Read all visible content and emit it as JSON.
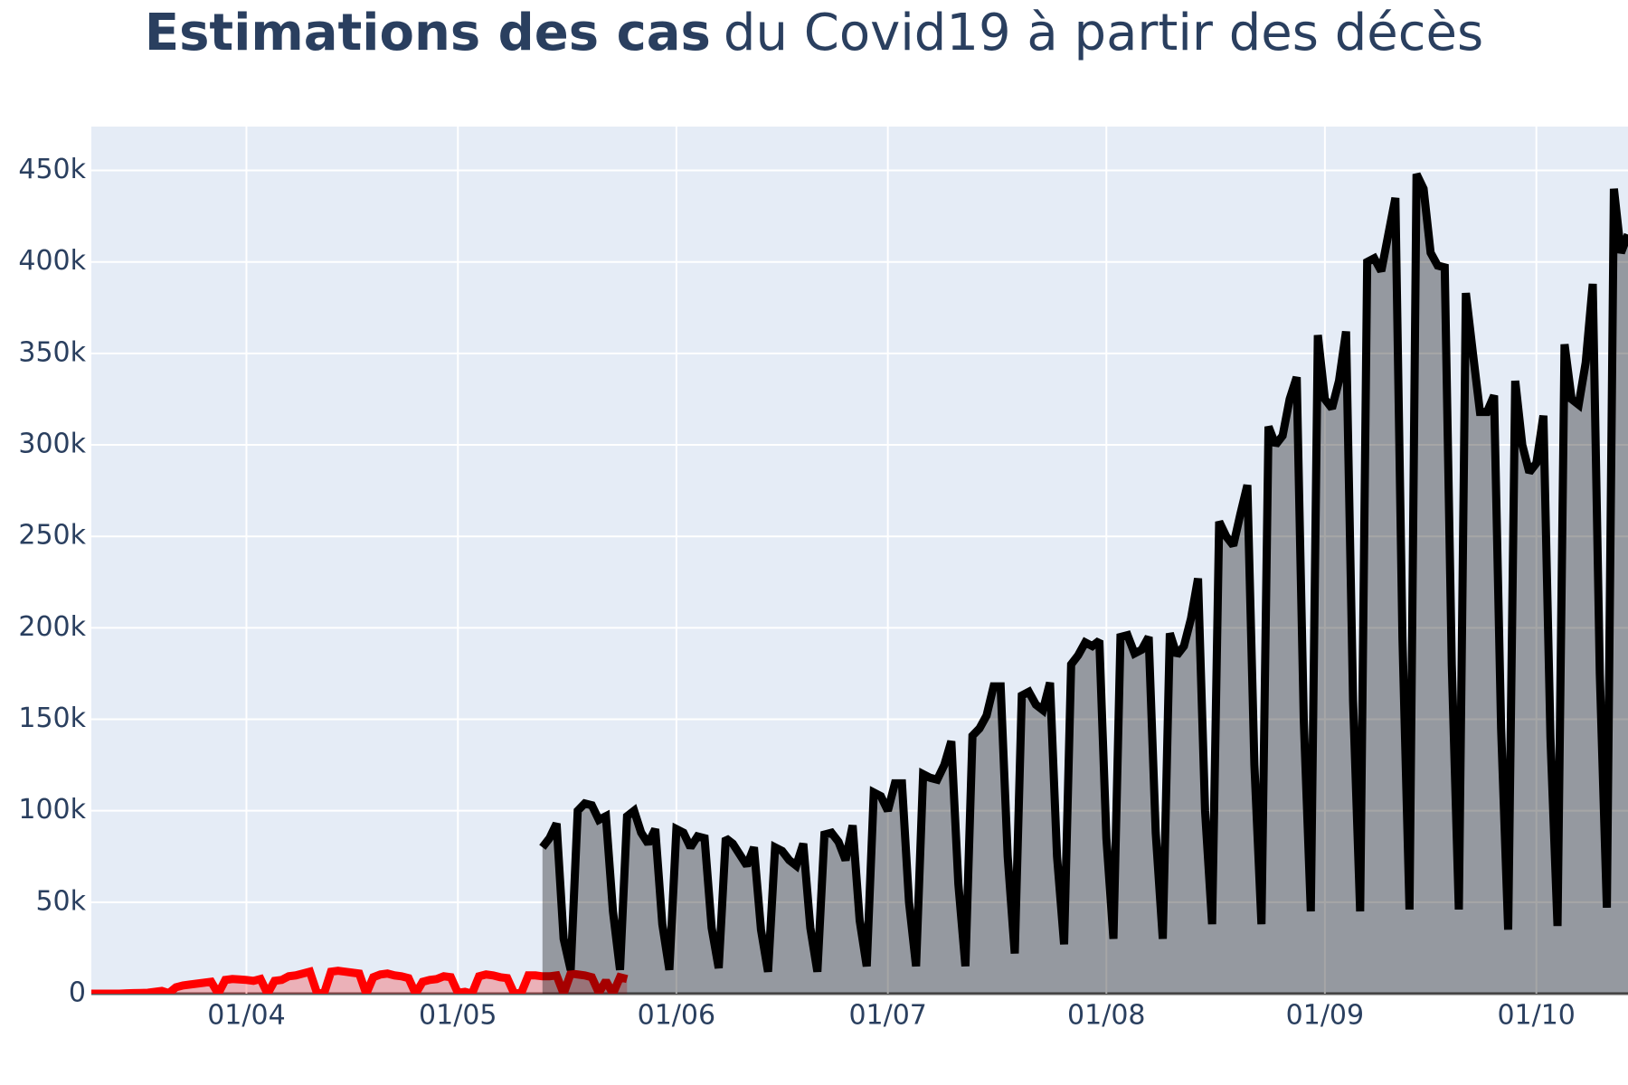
{
  "chart_data": {
    "type": "line",
    "title_parts": [
      "Estimations des cas",
      "du Covid19 à partir des décès"
    ],
    "xlim": [
      "10/03",
      "14/10"
    ],
    "xticks": [
      "01/04",
      "01/05",
      "01/06",
      "01/07",
      "01/08",
      "01/09",
      "01/10"
    ],
    "ylim": [
      0,
      474000
    ],
    "yticks": [
      0,
      {
        "value": 50000,
        "label": "50k"
      },
      {
        "value": 100000,
        "label": "100k"
      },
      {
        "value": 150000,
        "label": "150k"
      },
      {
        "value": 200000,
        "label": "200k"
      },
      {
        "value": 250000,
        "label": "250k"
      },
      {
        "value": 300000,
        "label": "300k"
      },
      {
        "value": 350000,
        "label": "350k"
      },
      {
        "value": 400000,
        "label": "400k"
      },
      {
        "value": 450000,
        "label": "450k"
      }
    ],
    "grid": true,
    "series": [
      {
        "color": "#ff0000",
        "fill": "rgba(255,0,0,0.25)",
        "x": [
          "10/03",
          "11/03",
          "12/03",
          "13/03",
          "14/03",
          "15/03",
          "16/03",
          "17/03",
          "18/03",
          "19/03",
          "20/03",
          "21/03",
          "22/03",
          "23/03",
          "24/03",
          "25/03",
          "26/03",
          "27/03",
          "28/03",
          "29/03",
          "30/03",
          "31/03",
          "01/04",
          "02/04",
          "03/04",
          "04/04",
          "05/04",
          "06/04",
          "07/04",
          "08/04",
          "09/04",
          "10/04",
          "11/04",
          "12/04",
          "13/04",
          "14/04",
          "15/04",
          "16/04",
          "17/04",
          "18/04",
          "19/04",
          "20/04",
          "21/04",
          "22/04",
          "23/04",
          "24/04",
          "25/04",
          "26/04",
          "27/04",
          "28/04",
          "29/04",
          "30/04",
          "01/05",
          "02/05",
          "03/05",
          "04/05",
          "05/05",
          "06/05",
          "07/05",
          "08/05",
          "09/05",
          "10/05",
          "11/05",
          "12/05",
          "13/05",
          "14/05",
          "15/05",
          "16/05",
          "17/05",
          "18/05",
          "19/05",
          "20/05",
          "21/05",
          "22/05",
          "23/05",
          "24/05",
          "25/05"
        ],
        "values": [
          0,
          0,
          0,
          0,
          0,
          200,
          300,
          400,
          500,
          1000,
          1500,
          300,
          3500,
          4500,
          5000,
          5500,
          6000,
          6500,
          0,
          7500,
          8000,
          7800,
          7500,
          7000,
          8000,
          0,
          7000,
          7500,
          9500,
          10000,
          11000,
          12000,
          500,
          0,
          12000,
          12500,
          12000,
          11500,
          11000,
          0,
          9000,
          10500,
          11000,
          10000,
          9500,
          8500,
          0,
          6500,
          7500,
          8000,
          9500,
          9000,
          500,
          1000,
          0,
          9500,
          10500,
          10000,
          9000,
          8500,
          0,
          500,
          10000,
          10000,
          9500,
          9500,
          10000,
          0,
          11000,
          10500,
          10000,
          9000,
          500,
          7000,
          0,
          9000,
          8000
        ]
      },
      {
        "color": "#000000",
        "fill": "rgba(0,0,0,0.35)",
        "x": [
          "13/05",
          "14/05",
          "15/05",
          "16/05",
          "17/05",
          "18/05",
          "19/05",
          "20/05",
          "21/05",
          "22/05",
          "23/05",
          "24/05",
          "25/05",
          "26/05",
          "27/05",
          "28/05",
          "29/05",
          "30/05",
          "31/05",
          "01/06",
          "02/06",
          "03/06",
          "04/06",
          "05/06",
          "06/06",
          "07/06",
          "08/06",
          "09/06",
          "10/06",
          "11/06",
          "12/06",
          "13/06",
          "14/06",
          "15/06",
          "16/06",
          "17/06",
          "18/06",
          "19/06",
          "20/06",
          "21/06",
          "22/06",
          "23/06",
          "24/06",
          "25/06",
          "26/06",
          "27/06",
          "28/06",
          "29/06",
          "30/06",
          "01/07",
          "02/07",
          "03/07",
          "04/07",
          "05/07",
          "06/07",
          "07/07",
          "08/07",
          "09/07",
          "10/07",
          "11/07",
          "12/07",
          "13/07",
          "14/07",
          "15/07",
          "16/07",
          "17/07",
          "18/07",
          "19/07",
          "20/07",
          "21/07",
          "22/07",
          "23/07",
          "24/07",
          "25/07",
          "26/07",
          "27/07",
          "28/07",
          "29/07",
          "30/07",
          "31/07",
          "01/08",
          "02/08",
          "03/08",
          "04/08",
          "05/08",
          "06/08",
          "07/08",
          "08/08",
          "09/08",
          "10/08",
          "11/08",
          "12/08",
          "13/08",
          "14/08",
          "15/08",
          "16/08",
          "17/08",
          "18/08",
          "19/08",
          "20/08",
          "21/08",
          "22/08",
          "23/08",
          "24/08",
          "25/08",
          "26/08",
          "27/08",
          "28/08",
          "29/08",
          "30/08",
          "31/08",
          "01/09",
          "02/09",
          "03/09",
          "04/09",
          "05/09",
          "06/09",
          "07/09",
          "08/09",
          "09/09",
          "10/09",
          "11/09",
          "12/09",
          "13/09",
          "14/09",
          "15/09",
          "16/09",
          "17/09",
          "18/09",
          "19/09",
          "20/09",
          "21/09",
          "22/09",
          "23/09",
          "24/09",
          "25/09",
          "26/09",
          "27/09",
          "28/09",
          "29/09",
          "30/09",
          "01/10",
          "02/10",
          "03/10",
          "04/10",
          "05/10",
          "06/10",
          "07/10",
          "08/10",
          "09/10",
          "10/10",
          "11/10",
          "12/10",
          "13/10",
          "14/10"
        ],
        "values": [
          80000,
          85000,
          93000,
          30000,
          13000,
          100000,
          104000,
          103000,
          95000,
          97000,
          45000,
          13000,
          97000,
          100000,
          88000,
          82000,
          90000,
          38000,
          13000,
          90000,
          88000,
          80000,
          86000,
          85000,
          36000,
          14000,
          85000,
          82000,
          76000,
          70000,
          80000,
          35000,
          12000,
          80000,
          78000,
          73000,
          70000,
          82000,
          36000,
          12000,
          87000,
          88000,
          83000,
          73000,
          92000,
          40000,
          15000,
          110000,
          108000,
          100000,
          115000,
          115000,
          50000,
          15000,
          120000,
          118000,
          117000,
          125000,
          138000,
          60000,
          15000,
          141000,
          145000,
          152000,
          168000,
          168000,
          75000,
          22000,
          163000,
          165000,
          158000,
          155000,
          170000,
          75000,
          27000,
          180000,
          185000,
          192000,
          190000,
          193000,
          85000,
          30000,
          195000,
          196000,
          186000,
          188000,
          195000,
          88000,
          30000,
          197000,
          185000,
          190000,
          205000,
          227000,
          100000,
          38000,
          258000,
          250000,
          245000,
          262000,
          278000,
          125000,
          38000,
          310000,
          300000,
          305000,
          325000,
          337000,
          150000,
          45000,
          360000,
          325000,
          320000,
          335000,
          362000,
          160000,
          45000,
          400000,
          402000,
          395000,
          415000,
          435000,
          195000,
          46000,
          448000,
          440000,
          405000,
          398000,
          397000,
          180000,
          46000,
          383000,
          350000,
          318000,
          318000,
          327000,
          145000,
          35000,
          335000,
          300000,
          285000,
          290000,
          316000,
          140000,
          37000,
          355000,
          325000,
          322000,
          345000,
          388000,
          175000,
          47000,
          440000,
          405000,
          415000
        ]
      }
    ]
  }
}
